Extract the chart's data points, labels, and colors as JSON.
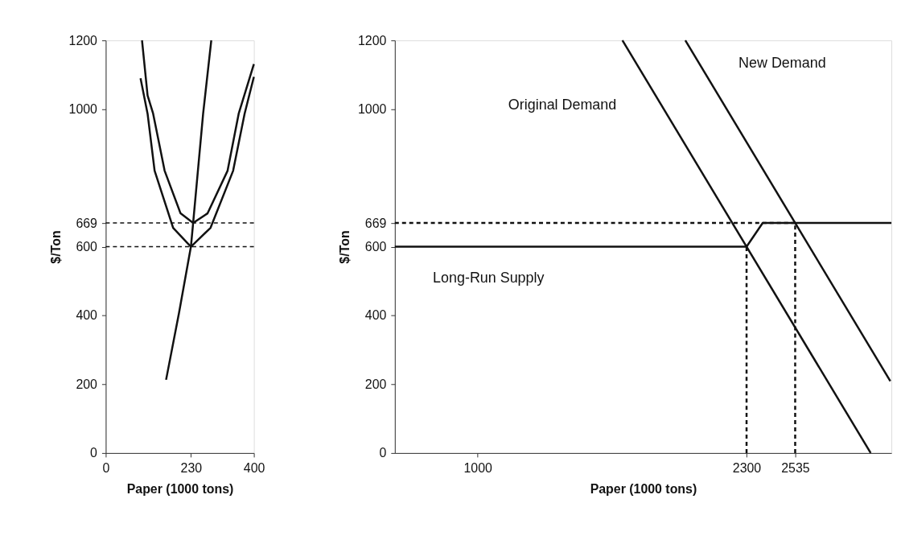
{
  "chart_data": [
    {
      "type": "line",
      "xlabel": "Paper (1000 tons)",
      "ylabel": "$/Ton",
      "xlim": [
        0,
        400
      ],
      "ylim": [
        0,
        1200
      ],
      "xticks": [
        0,
        230,
        400
      ],
      "yticks": [
        0,
        200,
        400,
        600,
        669,
        1000,
        1200
      ],
      "grid": false,
      "marker": "none",
      "series": [
        {
          "color": "#111111",
          "x": [
            98,
            113,
            128,
            159,
            202,
            236,
            275,
            329,
            359,
            400
          ],
          "values": [
            1200,
            1040,
            987,
            821,
            697,
            669,
            697,
            821,
            987,
            1131
          ]
        },
        {
          "color": "#111111",
          "x": [
            94,
            113,
            132,
            182,
            230,
            283,
            344,
            375,
            400
          ],
          "values": [
            1090,
            987,
            821,
            655,
            600,
            655,
            821,
            987,
            1094
          ]
        },
        {
          "color": "#111111",
          "x": [
            163,
            198,
            230,
            236,
            263,
            285
          ],
          "values": [
            213,
            408,
            600,
            669,
            987,
            1200
          ]
        }
      ],
      "ref_lines": [
        {
          "axis": "y",
          "value": 669,
          "line_style": "dashed",
          "color": "#111111"
        },
        {
          "axis": "y",
          "value": 600,
          "line_style": "dashed",
          "color": "#111111"
        }
      ]
    },
    {
      "type": "line",
      "xlabel": "Paper (1000 tons)",
      "ylabel": "$/Ton",
      "xlim": [
        600,
        3000
      ],
      "ylim": [
        0,
        1200
      ],
      "xticks": [
        1000,
        2300,
        2535
      ],
      "yticks": [
        0,
        200,
        400,
        600,
        669,
        1000,
        1200
      ],
      "grid": false,
      "marker": "none",
      "series": [
        {
          "name": "Original Demand",
          "color": "#111111",
          "x": [
            1700,
            2900
          ],
          "values": [
            1200,
            0
          ]
        },
        {
          "name": "New Demand",
          "color": "#111111",
          "x": [
            2004,
            2995
          ],
          "values": [
            1200,
            209
          ]
        },
        {
          "name": "Long-Run Supply",
          "color": "#111111",
          "x": [
            600,
            2300,
            2378,
            3000
          ],
          "values": [
            600,
            600,
            669,
            669
          ]
        },
        {
          "color": "#111111",
          "line_style": "dashed",
          "x": [
            600,
            2535
          ],
          "values": [
            669,
            669
          ]
        },
        {
          "color": "#111111",
          "line_style": "dashed",
          "x": [
            2300,
            2300
          ],
          "values": [
            0,
            600
          ]
        },
        {
          "color": "#111111",
          "line_style": "dashed",
          "x": [
            2535,
            2535
          ],
          "values": [
            0,
            669
          ]
        }
      ]
    }
  ]
}
